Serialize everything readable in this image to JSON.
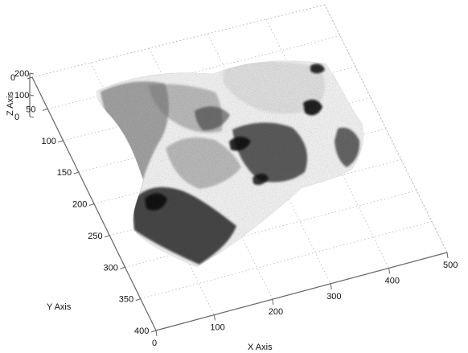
{
  "chart_data": {
    "type": "surface",
    "title": "",
    "xlabel": "X Axis",
    "ylabel": "Y Axis",
    "zlabel": "Z Axis",
    "x_ticks": [
      "0",
      "100",
      "200",
      "300",
      "400",
      "500"
    ],
    "y_ticks": [
      "0",
      "50",
      "100",
      "150",
      "200",
      "250",
      "300",
      "350",
      "400"
    ],
    "z_ticks": [
      "0",
      "100",
      "200"
    ],
    "xlim": [
      0,
      500
    ],
    "ylim": [
      0,
      400
    ],
    "zlim": [
      0,
      200
    ],
    "grid": true,
    "colormap": "grayscale",
    "colors": {
      "surface_dark": "#222222",
      "surface_mid": "#777777",
      "surface_light": "#d7d7d7",
      "grid": "#b7b7b7",
      "axis": "#666666"
    }
  }
}
